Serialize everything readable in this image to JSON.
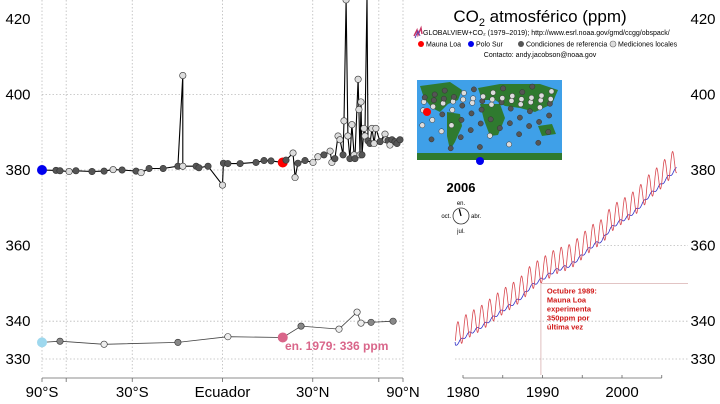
{
  "chart_data": [
    {
      "type": "scatter",
      "title_main": "CO",
      "title_sub": "2",
      "title_rest": " atmosférico (ppm)",
      "source_line": "GLOBALVIEW+CO₂ (1979–2019); http://www.esrl.noaa.gov/gmd/ccgg/obspack/",
      "contact": "Contacto: andy.jacobson@noaa.gov",
      "legend": [
        {
          "label": "Mauna Loa",
          "color": "#ff0000",
          "outline": false
        },
        {
          "label": "Polo Sur",
          "color": "#0000ee",
          "outline": false
        },
        {
          "label": "Condiciones de referencia",
          "color": "#555555",
          "outline": false
        },
        {
          "label": "Mediciones locales",
          "color": "#dddddd",
          "outline": true
        }
      ],
      "x_scale": "sine-latitude",
      "x_ticks": [
        {
          "lat": -90,
          "label": "90°S"
        },
        {
          "lat": -30,
          "label": "30°S"
        },
        {
          "lat": 0,
          "label": "Ecuador"
        },
        {
          "lat": 30,
          "label": "30°N"
        },
        {
          "lat": 90,
          "label": "90°N"
        }
      ],
      "y_ticks_left": [
        420,
        400,
        380,
        360,
        340,
        330
      ],
      "y_ticks_right": [
        420,
        400,
        380,
        360,
        340,
        330
      ],
      "ylim": [
        326,
        424
      ],
      "year_label": "2006",
      "clock": {
        "top": "en.",
        "right": "abr.",
        "bottom": "jul.",
        "left": "oct.",
        "month_fraction": 0.96
      },
      "series_current": [
        [
          -90,
          380.0,
          "south_pole"
        ],
        [
          -67.3,
          379.9,
          "ref"
        ],
        [
          -64.2,
          379.8,
          "ref"
        ],
        [
          -58.2,
          379.6,
          "local"
        ],
        [
          -54.3,
          379.8,
          "ref"
        ],
        [
          -46.3,
          379.6,
          "ref"
        ],
        [
          -41.0,
          379.7,
          "ref"
        ],
        [
          -37.3,
          380.1,
          "local"
        ],
        [
          -33.8,
          380.0,
          "ref"
        ],
        [
          -28.6,
          379.7,
          "ref"
        ],
        [
          -26.8,
          379.3,
          "local"
        ],
        [
          -24.0,
          380.4,
          "ref"
        ],
        [
          -19.2,
          380.4,
          "ref"
        ],
        [
          -14.3,
          381.0,
          "ref"
        ],
        [
          -12.7,
          405.0,
          "local"
        ],
        [
          -12.7,
          381.0,
          "local"
        ],
        [
          -8.4,
          381.0,
          "ref"
        ],
        [
          -7.5,
          380.6,
          "ref"
        ],
        [
          -4.6,
          381.0,
          "ref"
        ],
        [
          0,
          376.0,
          "local"
        ],
        [
          0.3,
          381.8,
          "ref"
        ],
        [
          1.7,
          381.7,
          "ref"
        ],
        [
          5.6,
          381.7,
          "ref"
        ],
        [
          10.7,
          382.0,
          "ref"
        ],
        [
          13.3,
          382.5,
          "ref"
        ],
        [
          15.6,
          382.4,
          "ref"
        ],
        [
          19.5,
          382.0,
          "mauna_loa"
        ],
        [
          20.6,
          382.6,
          "ref"
        ],
        [
          23.0,
          384.5,
          "local"
        ],
        [
          23.7,
          378.0,
          "local"
        ],
        [
          24.7,
          381.8,
          "ref"
        ],
        [
          27.2,
          382.5,
          "ref"
        ],
        [
          30.1,
          382.0,
          "local"
        ],
        [
          31.9,
          383.5,
          "local"
        ],
        [
          34.2,
          384.0,
          "ref"
        ],
        [
          36.6,
          385.0,
          "local"
        ],
        [
          37.3,
          382.0,
          "local"
        ],
        [
          38.5,
          383.0,
          "ref"
        ],
        [
          39.8,
          389.0,
          "local"
        ],
        [
          40.6,
          388.0,
          "local"
        ],
        [
          41.9,
          384.0,
          "ref"
        ],
        [
          42.3,
          393.0,
          "local"
        ],
        [
          43.2,
          425.0,
          "local"
        ],
        [
          44.0,
          389.0,
          "local"
        ],
        [
          44.9,
          383.0,
          "ref"
        ],
        [
          45.8,
          392.0,
          "local"
        ],
        [
          46.8,
          384.0,
          "local"
        ],
        [
          47.2,
          383.0,
          "ref"
        ],
        [
          48.7,
          404.0,
          "local"
        ],
        [
          49.1,
          396.0,
          "local"
        ],
        [
          49.6,
          384.0,
          "local"
        ],
        [
          50.1,
          398.0,
          "local"
        ],
        [
          50.6,
          384.0,
          "ref"
        ],
        [
          51.6,
          391.0,
          "local"
        ],
        [
          52.1,
          389.0,
          "local"
        ],
        [
          53.2,
          426.0,
          "local"
        ],
        [
          53.7,
          387.7,
          "ref"
        ],
        [
          54.8,
          387.0,
          "ref"
        ],
        [
          55.9,
          391.0,
          "local"
        ],
        [
          57.1,
          387.0,
          "local"
        ],
        [
          58.2,
          391.0,
          "local"
        ],
        [
          60.8,
          387.5,
          "ref"
        ],
        [
          64.2,
          389.5,
          "local"
        ],
        [
          64.9,
          388.0,
          "local"
        ],
        [
          66.5,
          387.8,
          "ref"
        ],
        [
          68.1,
          386.6,
          "local"
        ],
        [
          69.9,
          388.0,
          "ref"
        ],
        [
          72.9,
          387.5,
          "ref"
        ],
        [
          75.2,
          387.0,
          "ref"
        ],
        [
          79.5,
          388.0,
          "ref"
        ]
      ],
      "series_1979": [
        [
          -90,
          334.4,
          "south_pole"
        ],
        [
          -64.2,
          334.7,
          "ref"
        ],
        [
          -41.0,
          333.9,
          "local"
        ],
        [
          -14.3,
          334.4,
          "ref"
        ],
        [
          1.7,
          335.9,
          "local"
        ],
        [
          19.5,
          335.7,
          "mauna_loa"
        ],
        [
          25.8,
          338.7,
          "ref"
        ],
        [
          40.2,
          337.9,
          "local"
        ],
        [
          48.2,
          342.4,
          "local"
        ],
        [
          50.1,
          339.5,
          "local"
        ],
        [
          55.4,
          339.7,
          "ref"
        ],
        [
          70.9,
          340.0,
          "ref"
        ]
      ],
      "label_1979": "en. 1979: 336 ppm",
      "colors": {
        "mauna_loa": "#ff0000",
        "south_pole": "#0000ee",
        "ref": "#555555",
        "local": "#dddddd",
        "south_pole_1979": "#9ed8ee",
        "mauna_loa_1979": "#d9668a",
        "label_1979": "#d9668a"
      }
    },
    {
      "type": "line",
      "x_ticks": [
        1980,
        1990,
        2000
      ],
      "x_minor_ticks": [
        1980,
        1985,
        1990,
        1995,
        2000,
        2005
      ],
      "xlim": [
        1979,
        2006.9
      ],
      "mauna_loa_annual_mean": {
        "years": [
          1979,
          1980,
          1981,
          1982,
          1983,
          1984,
          1985,
          1986,
          1987,
          1988,
          1989,
          1990,
          1991,
          1992,
          1993,
          1994,
          1995,
          1996,
          1997,
          1998,
          1999,
          2000,
          2001,
          2002,
          2003,
          2004,
          2005,
          2006
        ],
        "ppm": [
          336.8,
          338.7,
          339.9,
          341.1,
          342.8,
          344.4,
          345.9,
          347.2,
          348.9,
          351.5,
          352.9,
          354.2,
          355.6,
          356.4,
          357.1,
          358.8,
          360.8,
          362.6,
          363.7,
          366.7,
          368.4,
          369.6,
          371.1,
          373.2,
          375.8,
          377.5,
          379.8,
          381.9
        ]
      },
      "mauna_loa_seasonal_amplitude_ppm": 3.3,
      "south_pole_offset_ppm": -2.3,
      "colors": {
        "mauna_loa": "#d9474f",
        "south_pole": "#3434c8",
        "annotation": "#d01818"
      },
      "annotation": {
        "year": 1989.8,
        "ppm": 350,
        "lines": [
          "Octubre 1989:",
          "Mauna Loa",
          "experimenta",
          "350ppm por",
          "última vez"
        ]
      }
    }
  ]
}
